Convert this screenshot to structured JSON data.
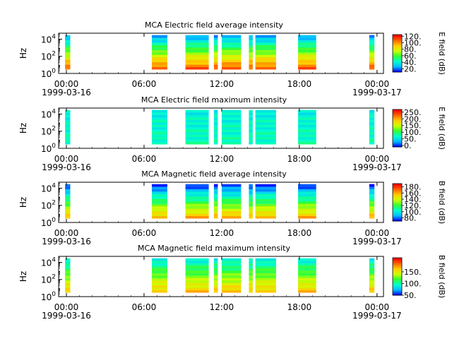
{
  "colors": {
    "ramp": [
      "#0000ff",
      "#00bfff",
      "#00ffcc",
      "#33ff33",
      "#ccff00",
      "#ffcc00",
      "#ff6600",
      "#ff0000"
    ]
  },
  "time_axis": {
    "major_ticks": [
      {
        "hours": 0,
        "label": "00:00",
        "date": "1999-03-16"
      },
      {
        "hours": 6,
        "label": "06:00",
        "date": ""
      },
      {
        "hours": 12,
        "label": "12:00",
        "date": ""
      },
      {
        "hours": 18,
        "label": "18:00",
        "date": ""
      },
      {
        "hours": 24,
        "label": "00:00",
        "date": "1999-03-17"
      }
    ],
    "range_hours": [
      -0.6,
      24.5
    ],
    "minor_tick_step_hours": 1
  },
  "chart_data": [
    {
      "type": "heatmap",
      "title": "MCA  Electric field average intensity",
      "ylabel": "Hz",
      "y_log": true,
      "ylim": [
        1,
        50000
      ],
      "y_ticks": [
        {
          "exp": "0"
        },
        {
          "exp": "2"
        },
        {
          "exp": "4"
        }
      ],
      "colorbar": {
        "label": "E field (dB)",
        "range": [
          10,
          125
        ],
        "ticks": [
          "20.",
          "40.",
          "60.",
          "80.",
          "100.",
          "120."
        ],
        "tick_values": [
          20,
          40,
          60,
          80,
          100,
          120
        ]
      },
      "x_hours_blocks": [
        [
          -0.1,
          0.3
        ],
        [
          6.6,
          7.8
        ],
        [
          9.2,
          11.0
        ],
        [
          11.4,
          11.7
        ],
        [
          12.0,
          13.5
        ],
        [
          14.1,
          14.4
        ],
        [
          14.6,
          16.2
        ],
        [
          17.9,
          19.3
        ],
        [
          23.4,
          23.8
        ]
      ],
      "intensity_low": 110,
      "intensity_high": 25
    },
    {
      "type": "heatmap",
      "title": "MCA  Electric field maximum intensity",
      "ylabel": "Hz",
      "y_log": true,
      "ylim": [
        1,
        50000
      ],
      "y_ticks": [
        {
          "exp": "0"
        },
        {
          "exp": "2"
        },
        {
          "exp": "4"
        }
      ],
      "colorbar": {
        "label": "E field (dB)",
        "range": [
          -10,
          270
        ],
        "ticks": [
          "0.",
          "50.",
          "100.",
          "150.",
          "200.",
          "250."
        ],
        "tick_values": [
          0,
          50,
          100,
          150,
          200,
          250
        ]
      },
      "x_hours_blocks": [
        [
          -0.1,
          0.3
        ],
        [
          6.6,
          7.8
        ],
        [
          9.2,
          11.0
        ],
        [
          11.4,
          11.7
        ],
        [
          12.0,
          13.5
        ],
        [
          14.1,
          14.4
        ],
        [
          14.6,
          16.2
        ],
        [
          17.9,
          19.3
        ],
        [
          23.4,
          23.8
        ]
      ],
      "intensity_low": 75,
      "intensity_high": 60
    },
    {
      "type": "heatmap",
      "title": "MCA  Magnetic field average intensity",
      "ylabel": "Hz",
      "y_log": true,
      "ylim": [
        1,
        50000
      ],
      "y_ticks": [
        {
          "exp": "0"
        },
        {
          "exp": "2"
        },
        {
          "exp": "4"
        }
      ],
      "colorbar": {
        "label": "B field (dB)",
        "range": [
          70,
          190
        ],
        "ticks": [
          "80.",
          "100.",
          "120.",
          "140.",
          "160.",
          "180."
        ],
        "tick_values": [
          80,
          100,
          120,
          140,
          160,
          180
        ]
      },
      "x_hours_blocks": [
        [
          -0.1,
          0.3
        ],
        [
          6.6,
          7.8
        ],
        [
          9.2,
          11.0
        ],
        [
          11.4,
          11.7
        ],
        [
          12.0,
          13.5
        ],
        [
          14.1,
          14.4
        ],
        [
          14.6,
          16.2
        ],
        [
          17.9,
          19.3
        ],
        [
          23.4,
          23.8
        ]
      ],
      "intensity_low": 160,
      "intensity_high": 75
    },
    {
      "type": "heatmap",
      "title": "MCA  Magnetic field maximum intensity",
      "ylabel": "Hz",
      "y_log": true,
      "ylim": [
        1,
        50000
      ],
      "y_ticks": [
        {
          "exp": "0"
        },
        {
          "exp": "2"
        },
        {
          "exp": "4"
        }
      ],
      "colorbar": {
        "label": "B field (dB)",
        "range": [
          50,
          210
        ],
        "ticks": [
          "50.",
          "100.",
          "150."
        ],
        "tick_values": [
          50,
          100,
          150
        ]
      },
      "x_hours_blocks": [
        [
          -0.1,
          0.3
        ],
        [
          6.6,
          7.8
        ],
        [
          9.2,
          11.0
        ],
        [
          11.4,
          11.7
        ],
        [
          12.0,
          13.5
        ],
        [
          14.1,
          14.4
        ],
        [
          14.6,
          16.2
        ],
        [
          17.9,
          19.3
        ],
        [
          23.4,
          23.8
        ]
      ],
      "intensity_low": 165,
      "intensity_high": 90
    }
  ]
}
